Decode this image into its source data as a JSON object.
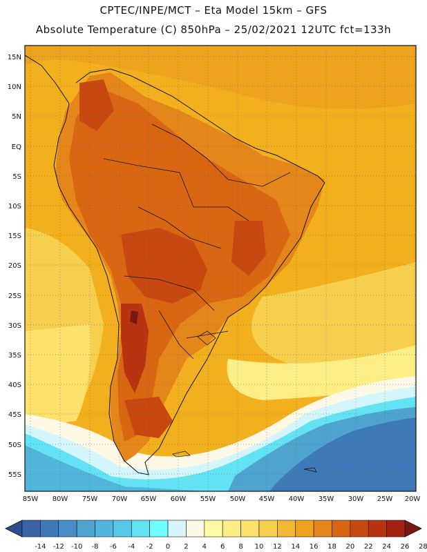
{
  "header": {
    "line1": "CPTEC/INPE/MCT –  Eta Model 15km – GFS",
    "line2": "Absolute Temperature (C) 850hPa – 25/02/2021 12UTC fct=133h"
  },
  "map": {
    "lat_labels": [
      "15N",
      "10N",
      "5N",
      "EQ",
      "5S",
      "10S",
      "15S",
      "20S",
      "25S",
      "30S",
      "35S",
      "40S",
      "45S",
      "50S",
      "55S"
    ],
    "lon_labels": [
      "85W",
      "80W",
      "75W",
      "70W",
      "65W",
      "60W",
      "55W",
      "50W",
      "45W",
      "40W",
      "35W",
      "30W",
      "25W",
      "20W"
    ],
    "colors": {
      "ocean_warm": "#f2b01f",
      "land_hot": "#e08a10",
      "hot_core": "#c2561a",
      "cold": "#3f8fc4"
    }
  },
  "colorbar": {
    "labels": [
      "-14",
      "-12",
      "-10",
      "-8",
      "-6",
      "-4",
      "-2",
      "0",
      "2",
      "4",
      "6",
      "8",
      "10",
      "12",
      "14",
      "16",
      "18",
      "20",
      "22",
      "24",
      "26",
      "28"
    ],
    "colors": [
      "#2c4d8e",
      "#3a64a6",
      "#3f7ab8",
      "#4b8dc6",
      "#4ea3cf",
      "#52b6dc",
      "#58c8e8",
      "#62e2f2",
      "#6ffcfc",
      "#d4f6fa",
      "#fff8e6",
      "#fdf9a4",
      "#fdee86",
      "#fce26c",
      "#f6cf4e",
      "#f2b733",
      "#eea31e",
      "#e5861b",
      "#d86612",
      "#c84812",
      "#b83310",
      "#a22410",
      "#7a1812"
    ]
  }
}
